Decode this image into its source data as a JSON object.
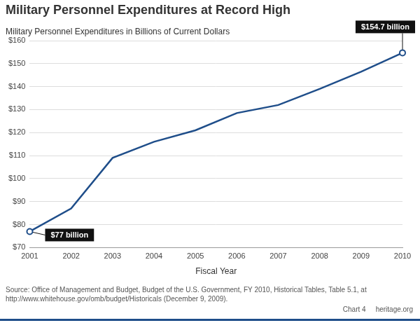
{
  "chart_data": {
    "type": "line",
    "title": "Military Personnel Expenditures at Record High",
    "subtitle": "Military Personnel Expenditures in Billions of Current Dollars",
    "x_label": "Fiscal Year",
    "categories": [
      "2001",
      "2002",
      "2003",
      "2004",
      "2005",
      "2006",
      "2007",
      "2008",
      "2009",
      "2010"
    ],
    "values": [
      77,
      87,
      109,
      116,
      121,
      128.5,
      132,
      139,
      146.5,
      154.7
    ],
    "color": "#1f4e8a",
    "ylim": [
      70,
      160
    ],
    "yticks": [
      {
        "value": 70,
        "label": "$70"
      },
      {
        "value": 80,
        "label": "$80"
      },
      {
        "value": 90,
        "label": "$90"
      },
      {
        "value": 100,
        "label": "$100"
      },
      {
        "value": 110,
        "label": "$110"
      },
      {
        "value": 120,
        "label": "$120"
      },
      {
        "value": 130,
        "label": "$130"
      },
      {
        "value": 140,
        "label": "$140"
      },
      {
        "value": 150,
        "label": "$150"
      },
      {
        "value": 160,
        "label": "$160"
      }
    ],
    "grid": true,
    "annotations": [
      {
        "x": "2001",
        "text": "$77 billion"
      },
      {
        "x": "2010",
        "text": "$154.7 billion"
      }
    ],
    "source": "Source: Office of Management and Budget, Budget of the U.S. Government, FY 2010, Historical Tables, Table 5.1, at http://www.whitehouse.gov/omb/budget/Historicals (December 9, 2009).",
    "footer": [
      "Chart 4",
      "heritage.org"
    ]
  }
}
